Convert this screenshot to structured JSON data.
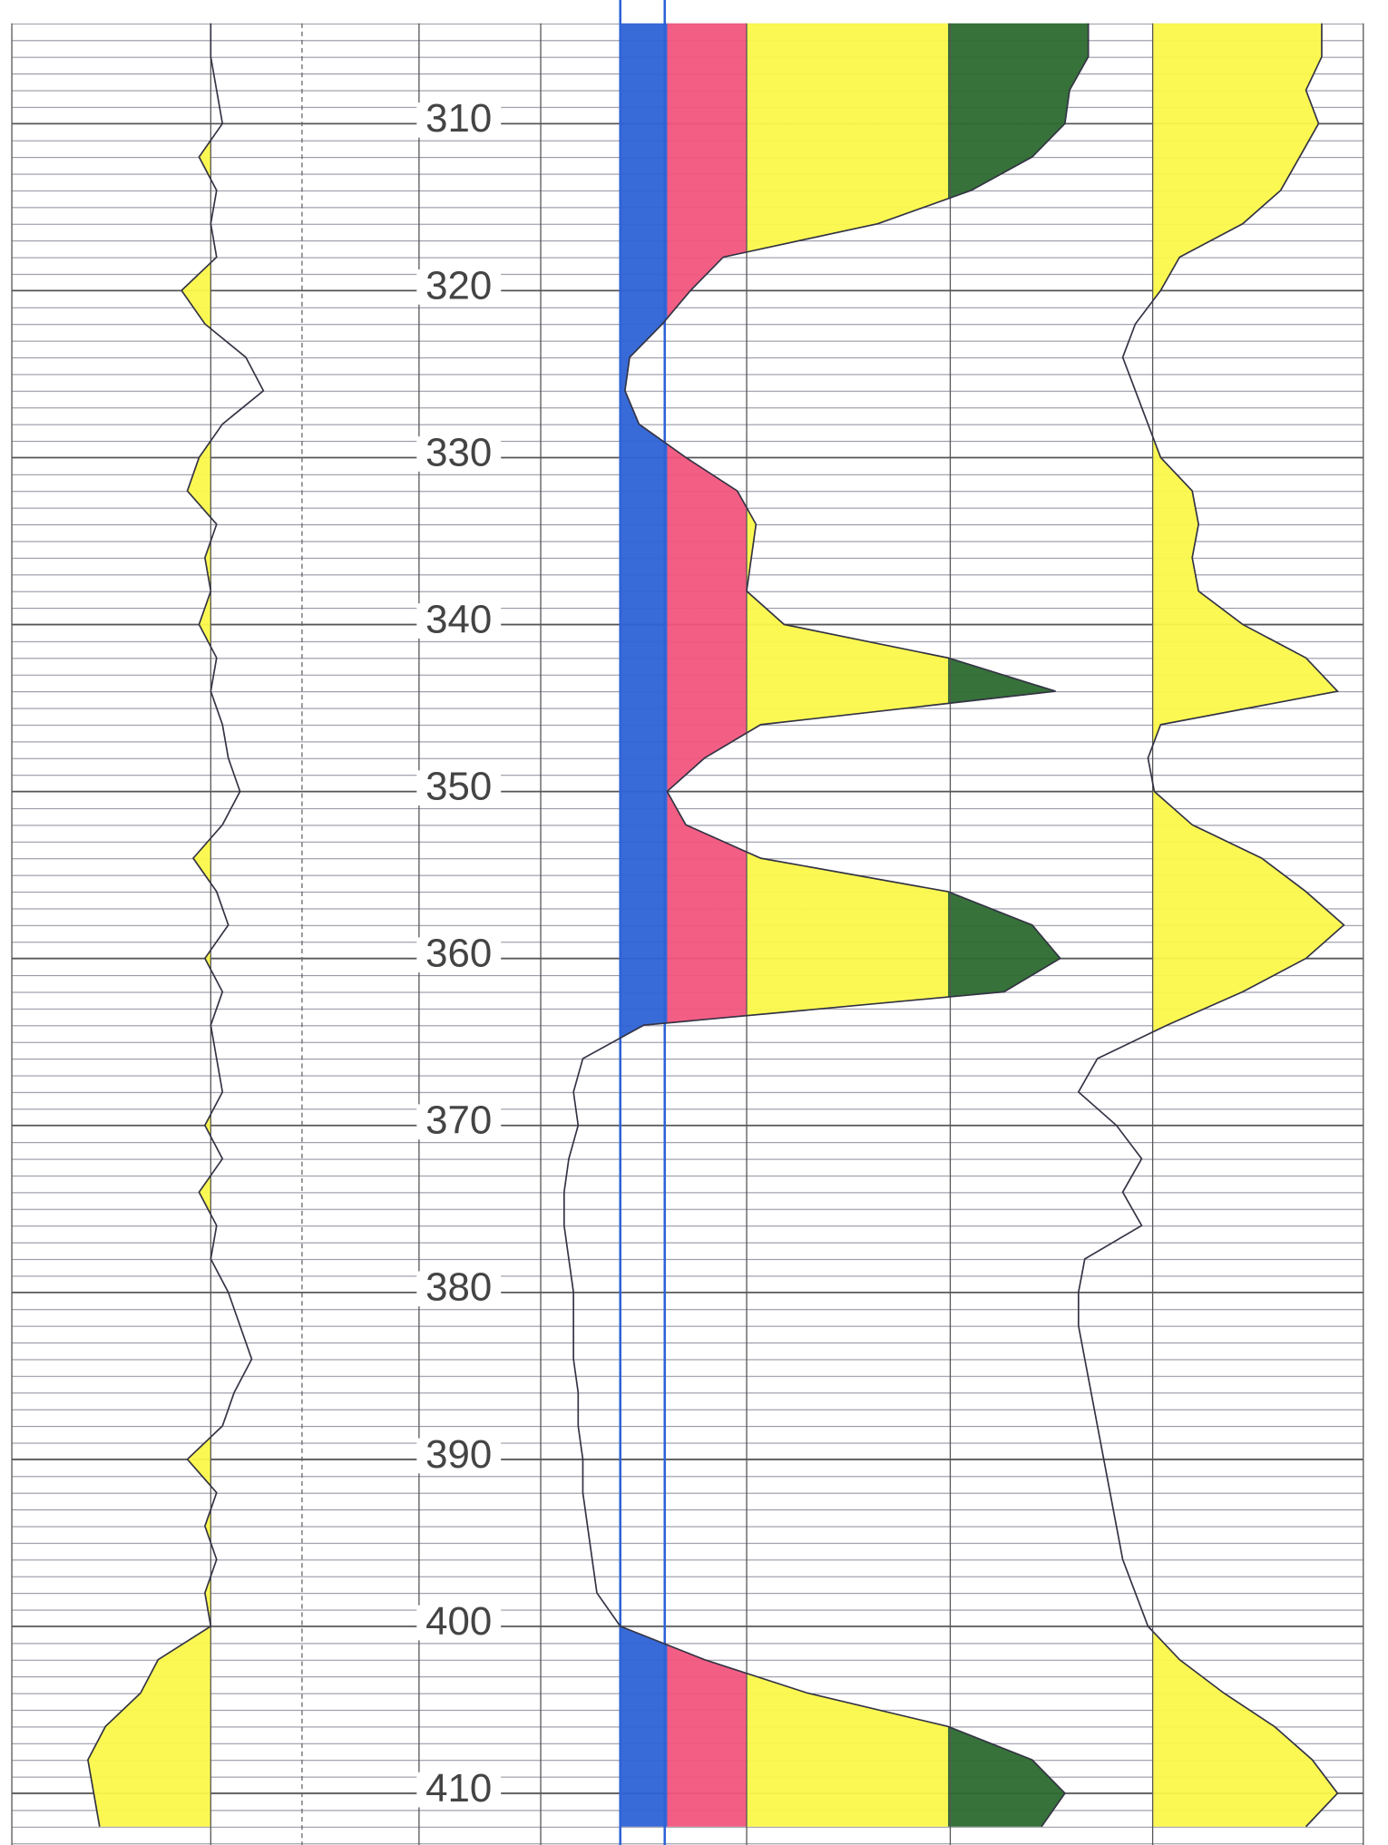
{
  "chart_data": {
    "type": "well-log",
    "ylim": [
      302.6,
      413.1
    ],
    "yticks": [
      310,
      320,
      330,
      340,
      350,
      360,
      370,
      380,
      390,
      400,
      410
    ],
    "depth": [
      304,
      306,
      308,
      310,
      312,
      314,
      316,
      318,
      320,
      322,
      324,
      326,
      328,
      330,
      332,
      334,
      336,
      338,
      340,
      342,
      344,
      346,
      348,
      350,
      352,
      354,
      356,
      358,
      360,
      362,
      364,
      366,
      368,
      370,
      372,
      374,
      376,
      378,
      380,
      382,
      384,
      386,
      388,
      390,
      392,
      394,
      396,
      398,
      400,
      402,
      404,
      406,
      408,
      410,
      412
    ],
    "grid": true,
    "series": [
      {
        "color": "#333344",
        "xlim": [
          0,
          100
        ],
        "cutoff": 68,
        "fill_side": "left",
        "fill_color": "#fbf84a",
        "values": [
          68,
          68,
          70,
          72,
          64,
          70,
          68,
          70,
          58,
          66,
          80,
          86,
          72,
          64,
          60,
          70,
          66,
          68,
          64,
          70,
          68,
          72,
          74,
          78,
          72,
          62,
          70,
          74,
          66,
          72,
          68,
          70,
          72,
          66,
          72,
          64,
          70,
          68,
          74,
          78,
          82,
          76,
          72,
          60,
          70,
          66,
          70,
          66,
          68,
          50,
          44,
          32,
          26,
          28,
          30
        ]
      },
      {
        "color": "#333344",
        "xlim": [
          -20,
          100
        ],
        "cutoff": 0,
        "fill_side": "right",
        "fill_bands": [
          {
            "to": 10,
            "color": "#2e63d6"
          },
          {
            "to": 27,
            "color": "#f2567d"
          },
          {
            "to": 70,
            "color": "#fbf84a"
          },
          {
            "to": 100,
            "color": "#2c6b2f"
          }
        ],
        "values": [
          100,
          100,
          96,
          95,
          88,
          75,
          55,
          22,
          15,
          9,
          2,
          1,
          4,
          14,
          25,
          29,
          28,
          27,
          35,
          70,
          93,
          30,
          18,
          10,
          14,
          30,
          70,
          88,
          94,
          82,
          5,
          -8,
          -10,
          -9,
          -11,
          -12,
          -12,
          -11,
          -10,
          -10,
          -10,
          -9,
          -9,
          -8,
          -8,
          -7,
          -6,
          -5,
          0,
          18,
          40,
          70,
          88,
          95,
          90
        ]
      },
      {
        "color": "#333344",
        "xlim": [
          0,
          100
        ],
        "cutoff": 31.5,
        "fill_side": "right",
        "fill_color": "#fbf84a",
        "values": [
          85,
          85,
          80,
          84,
          78,
          72,
          60,
          40,
          34,
          26,
          22,
          26,
          30,
          34,
          44,
          46,
          44,
          46,
          60,
          80,
          90,
          34,
          30,
          32,
          44,
          66,
          80,
          92,
          80,
          60,
          36,
          14,
          8,
          20,
          28,
          22,
          28,
          10,
          8,
          8,
          10,
          12,
          14,
          16,
          18,
          20,
          22,
          26,
          30,
          40,
          54,
          70,
          82,
          90,
          80
        ]
      }
    ]
  }
}
